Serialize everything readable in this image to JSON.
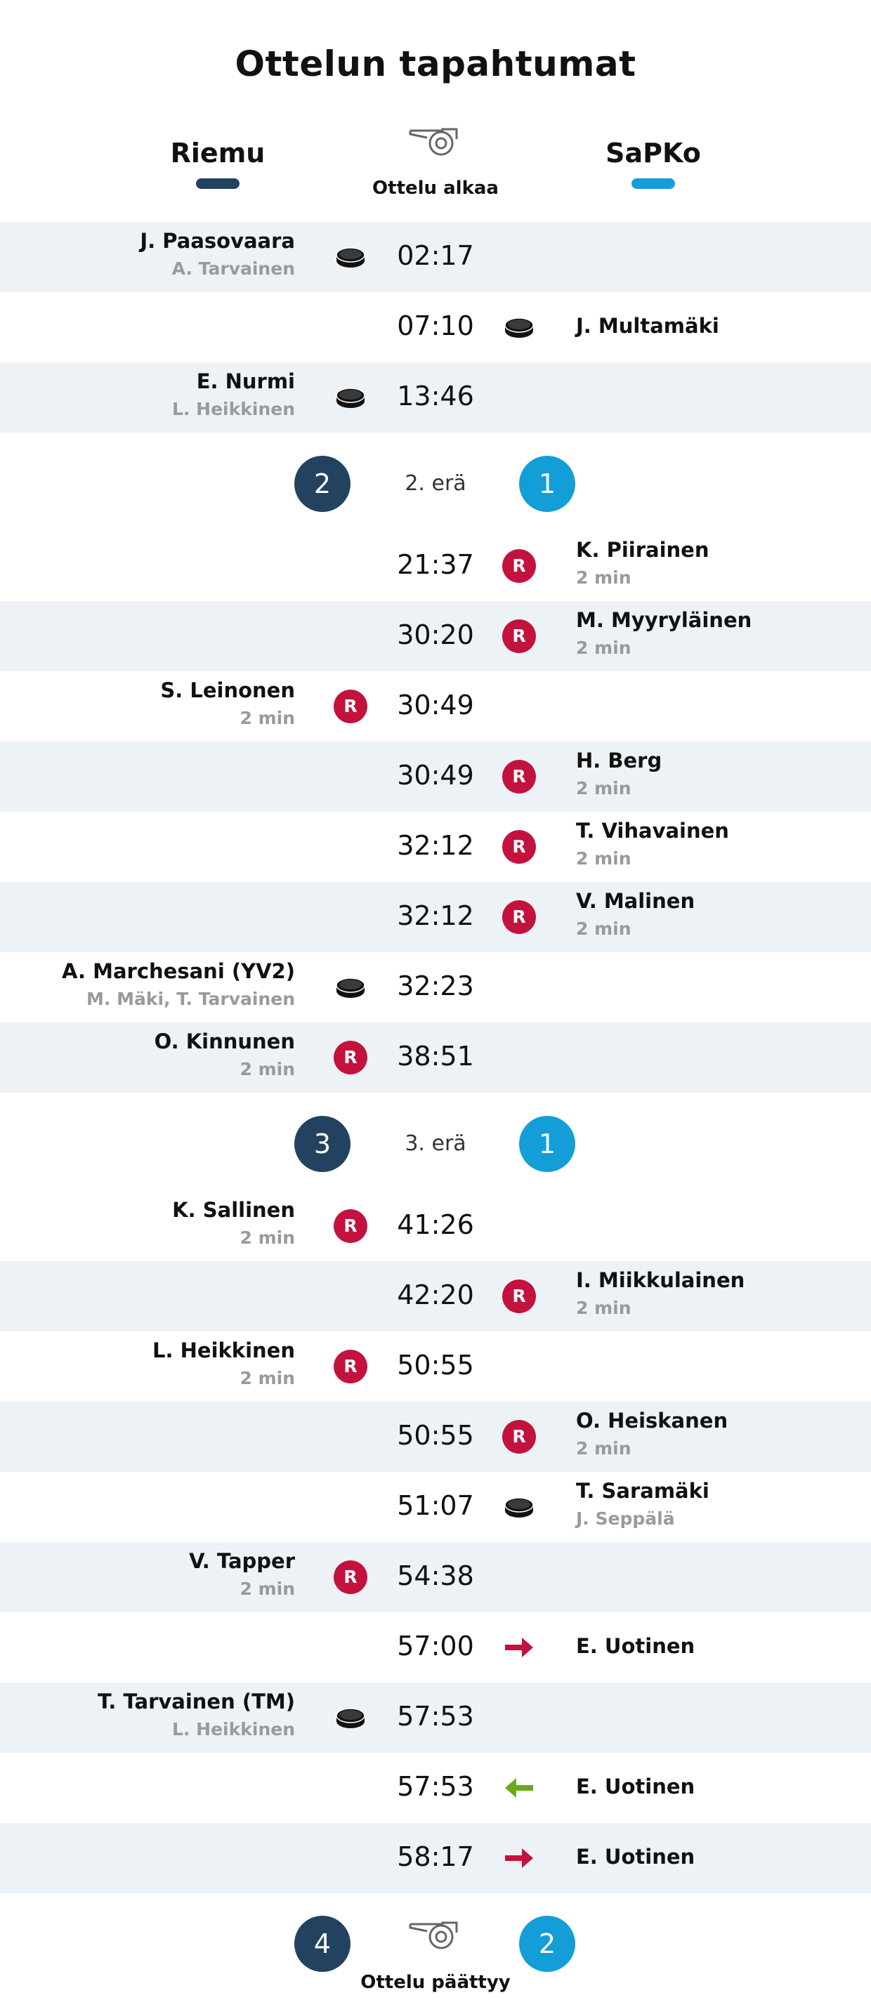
{
  "title": "Ottelun tapahtumat",
  "teams": {
    "home": "Riemu",
    "away": "SaPKo",
    "home_color": "#22425f",
    "away_color": "#139ed7"
  },
  "start_label": "Ottelu alkaa",
  "end_label": "Ottelu päättyy",
  "periods": [
    {
      "label": "2. erä",
      "home_score": "2",
      "away_score": "1"
    },
    {
      "label": "3. erä",
      "home_score": "3",
      "away_score": "1"
    }
  ],
  "final": {
    "home_score": "4",
    "away_score": "2"
  },
  "events": [
    {
      "time": "02:17",
      "side": "home",
      "type": "goal",
      "name": "J. Paasovaara",
      "sub": "A. Tarvainen"
    },
    {
      "time": "07:10",
      "side": "away",
      "type": "goal",
      "name": "J. Multamäki",
      "sub": ""
    },
    {
      "time": "13:46",
      "side": "home",
      "type": "goal",
      "name": "E. Nurmi",
      "sub": "L. Heikkinen"
    },
    {
      "time": "21:37",
      "side": "away",
      "type": "penalty",
      "name": "K. Piirainen",
      "sub": "2 min"
    },
    {
      "time": "30:20",
      "side": "away",
      "type": "penalty",
      "name": "M. Myyryläinen",
      "sub": "2 min"
    },
    {
      "time": "30:49",
      "side": "home",
      "type": "penalty",
      "name": "S. Leinonen",
      "sub": "2 min"
    },
    {
      "time": "30:49",
      "side": "away",
      "type": "penalty",
      "name": "H. Berg",
      "sub": "2 min"
    },
    {
      "time": "32:12",
      "side": "away",
      "type": "penalty",
      "name": "T. Vihavainen",
      "sub": "2 min"
    },
    {
      "time": "32:12",
      "side": "away",
      "type": "penalty",
      "name": "V. Malinen",
      "sub": "2 min"
    },
    {
      "time": "32:23",
      "side": "home",
      "type": "goal",
      "name": "A. Marchesani (YV2)",
      "sub": "M. Mäki, T. Tarvainen"
    },
    {
      "time": "38:51",
      "side": "home",
      "type": "penalty",
      "name": "O. Kinnunen",
      "sub": "2 min"
    },
    {
      "time": "41:26",
      "side": "home",
      "type": "penalty",
      "name": "K. Sallinen",
      "sub": "2 min"
    },
    {
      "time": "42:20",
      "side": "away",
      "type": "penalty",
      "name": "I. Miikkulainen",
      "sub": "2 min"
    },
    {
      "time": "50:55",
      "side": "home",
      "type": "penalty",
      "name": "L. Heikkinen",
      "sub": "2 min"
    },
    {
      "time": "50:55",
      "side": "away",
      "type": "penalty",
      "name": "O. Heiskanen",
      "sub": "2 min"
    },
    {
      "time": "51:07",
      "side": "away",
      "type": "goal",
      "name": "T. Saramäki",
      "sub": "J. Seppälä"
    },
    {
      "time": "54:38",
      "side": "home",
      "type": "penalty",
      "name": "V. Tapper",
      "sub": "2 min"
    },
    {
      "time": "57:00",
      "side": "away",
      "type": "goalie-out",
      "name": "E. Uotinen",
      "sub": ""
    },
    {
      "time": "57:53",
      "side": "home",
      "type": "goal",
      "name": "T. Tarvainen (TM)",
      "sub": "L. Heikkinen"
    },
    {
      "time": "57:53",
      "side": "away",
      "type": "goalie-in",
      "name": "E. Uotinen",
      "sub": ""
    },
    {
      "time": "58:17",
      "side": "away",
      "type": "goalie-out",
      "name": "E. Uotinen",
      "sub": ""
    }
  ],
  "icons": {
    "goal": "puck-icon",
    "penalty": "penalty-icon",
    "penalty_letter": "R",
    "goalie-out": "arrow-right-icon",
    "goalie-in": "arrow-left-icon"
  },
  "colors": {
    "penalty": "#c3123d",
    "arrow_out": "#c3123d",
    "arrow_in": "#6aaa1e",
    "row_shade": "#edf2f6"
  }
}
